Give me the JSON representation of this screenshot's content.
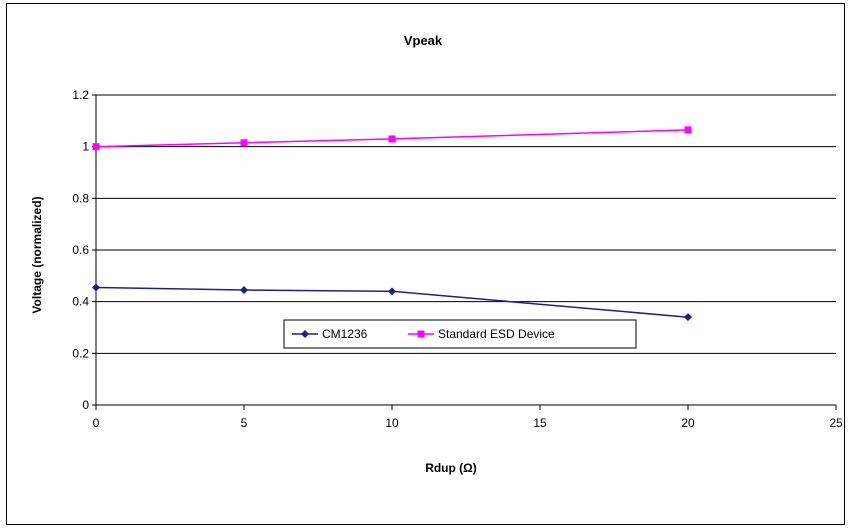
{
  "chart_data": {
    "type": "line",
    "title": "Vpeak",
    "xlabel": "Rdup (Ω)",
    "ylabel": "Voltage (normalized)",
    "xlim": [
      0,
      25
    ],
    "ylim": [
      0,
      1.2
    ],
    "x_ticks": [
      "0",
      "5",
      "10",
      "15",
      "20",
      "25"
    ],
    "y_ticks": [
      "0",
      "0.2",
      "0.4",
      "0.6",
      "0.8",
      "1",
      "1.2"
    ],
    "grid": "horizontal major gridlines",
    "legend_position": "inside, lower-center",
    "series": [
      {
        "name": "CM1236",
        "color": "#1f1f8c",
        "marker": "diamond",
        "x": [
          0,
          5,
          10,
          20
        ],
        "y": [
          0.455,
          0.445,
          0.44,
          0.34
        ]
      },
      {
        "name": "Standard ESD Device",
        "color": "#ff00ff",
        "marker": "square",
        "x": [
          0,
          5,
          10,
          20
        ],
        "y": [
          1.0,
          1.015,
          1.03,
          1.065
        ]
      }
    ]
  }
}
